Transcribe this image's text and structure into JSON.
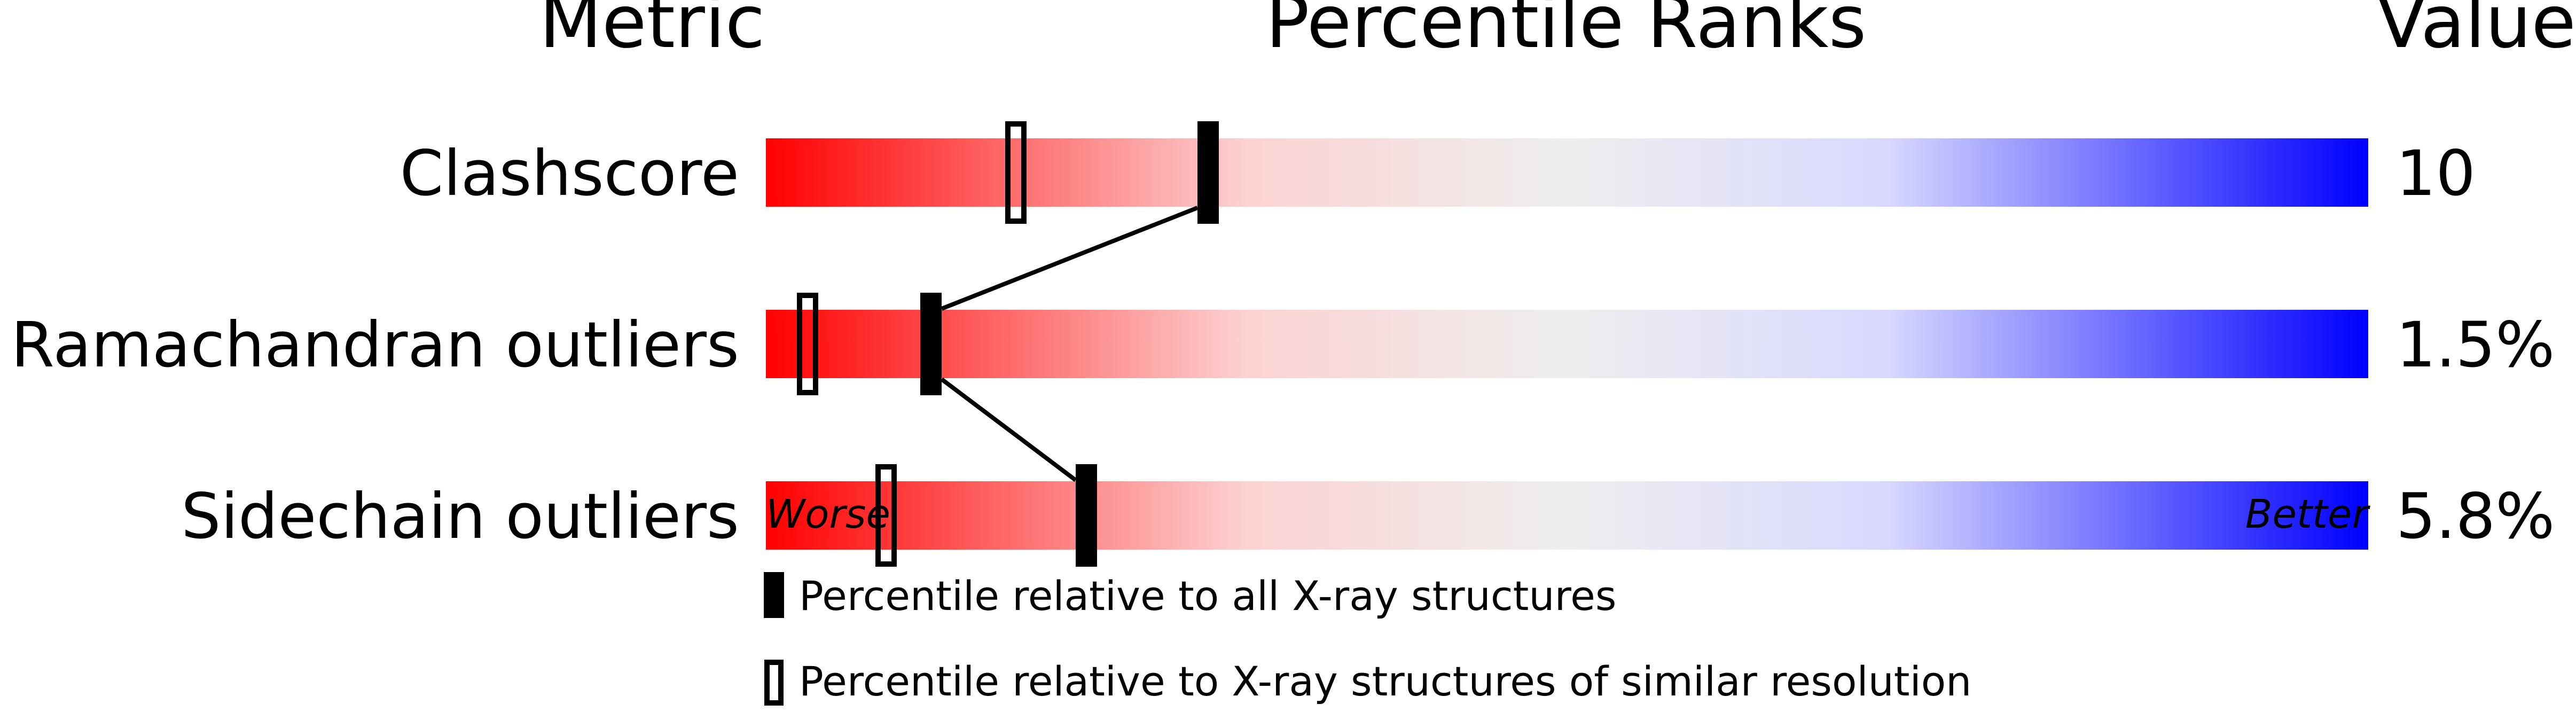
{
  "chart_data": {
    "type": "percentile-bar",
    "headers": {
      "metric": "Metric",
      "ranks": "Percentile Ranks",
      "value": "Value"
    },
    "axis": {
      "left_label": "Worse",
      "right_label": "Better",
      "range": [
        0,
        100
      ]
    },
    "colors": {
      "worse": "#ff0000",
      "middle": "#eeeeee",
      "better": "#0000ff",
      "marker": "#000000"
    },
    "metrics": [
      {
        "name": "Clashscore",
        "value": "10",
        "percentile_all": 27.6,
        "percentile_similar": 15.6
      },
      {
        "name": "Ramachandran outliers",
        "value": "1.5%",
        "percentile_all": 10.3,
        "percentile_similar": 2.6
      },
      {
        "name": "Sidechain outliers",
        "value": "5.8%",
        "percentile_all": 20.0,
        "percentile_similar": 7.5
      }
    ],
    "legend": [
      {
        "marker": "filled",
        "label": "Percentile relative to all X-ray structures"
      },
      {
        "marker": "open",
        "label": "Percentile relative to X-ray structures of similar resolution"
      }
    ]
  }
}
